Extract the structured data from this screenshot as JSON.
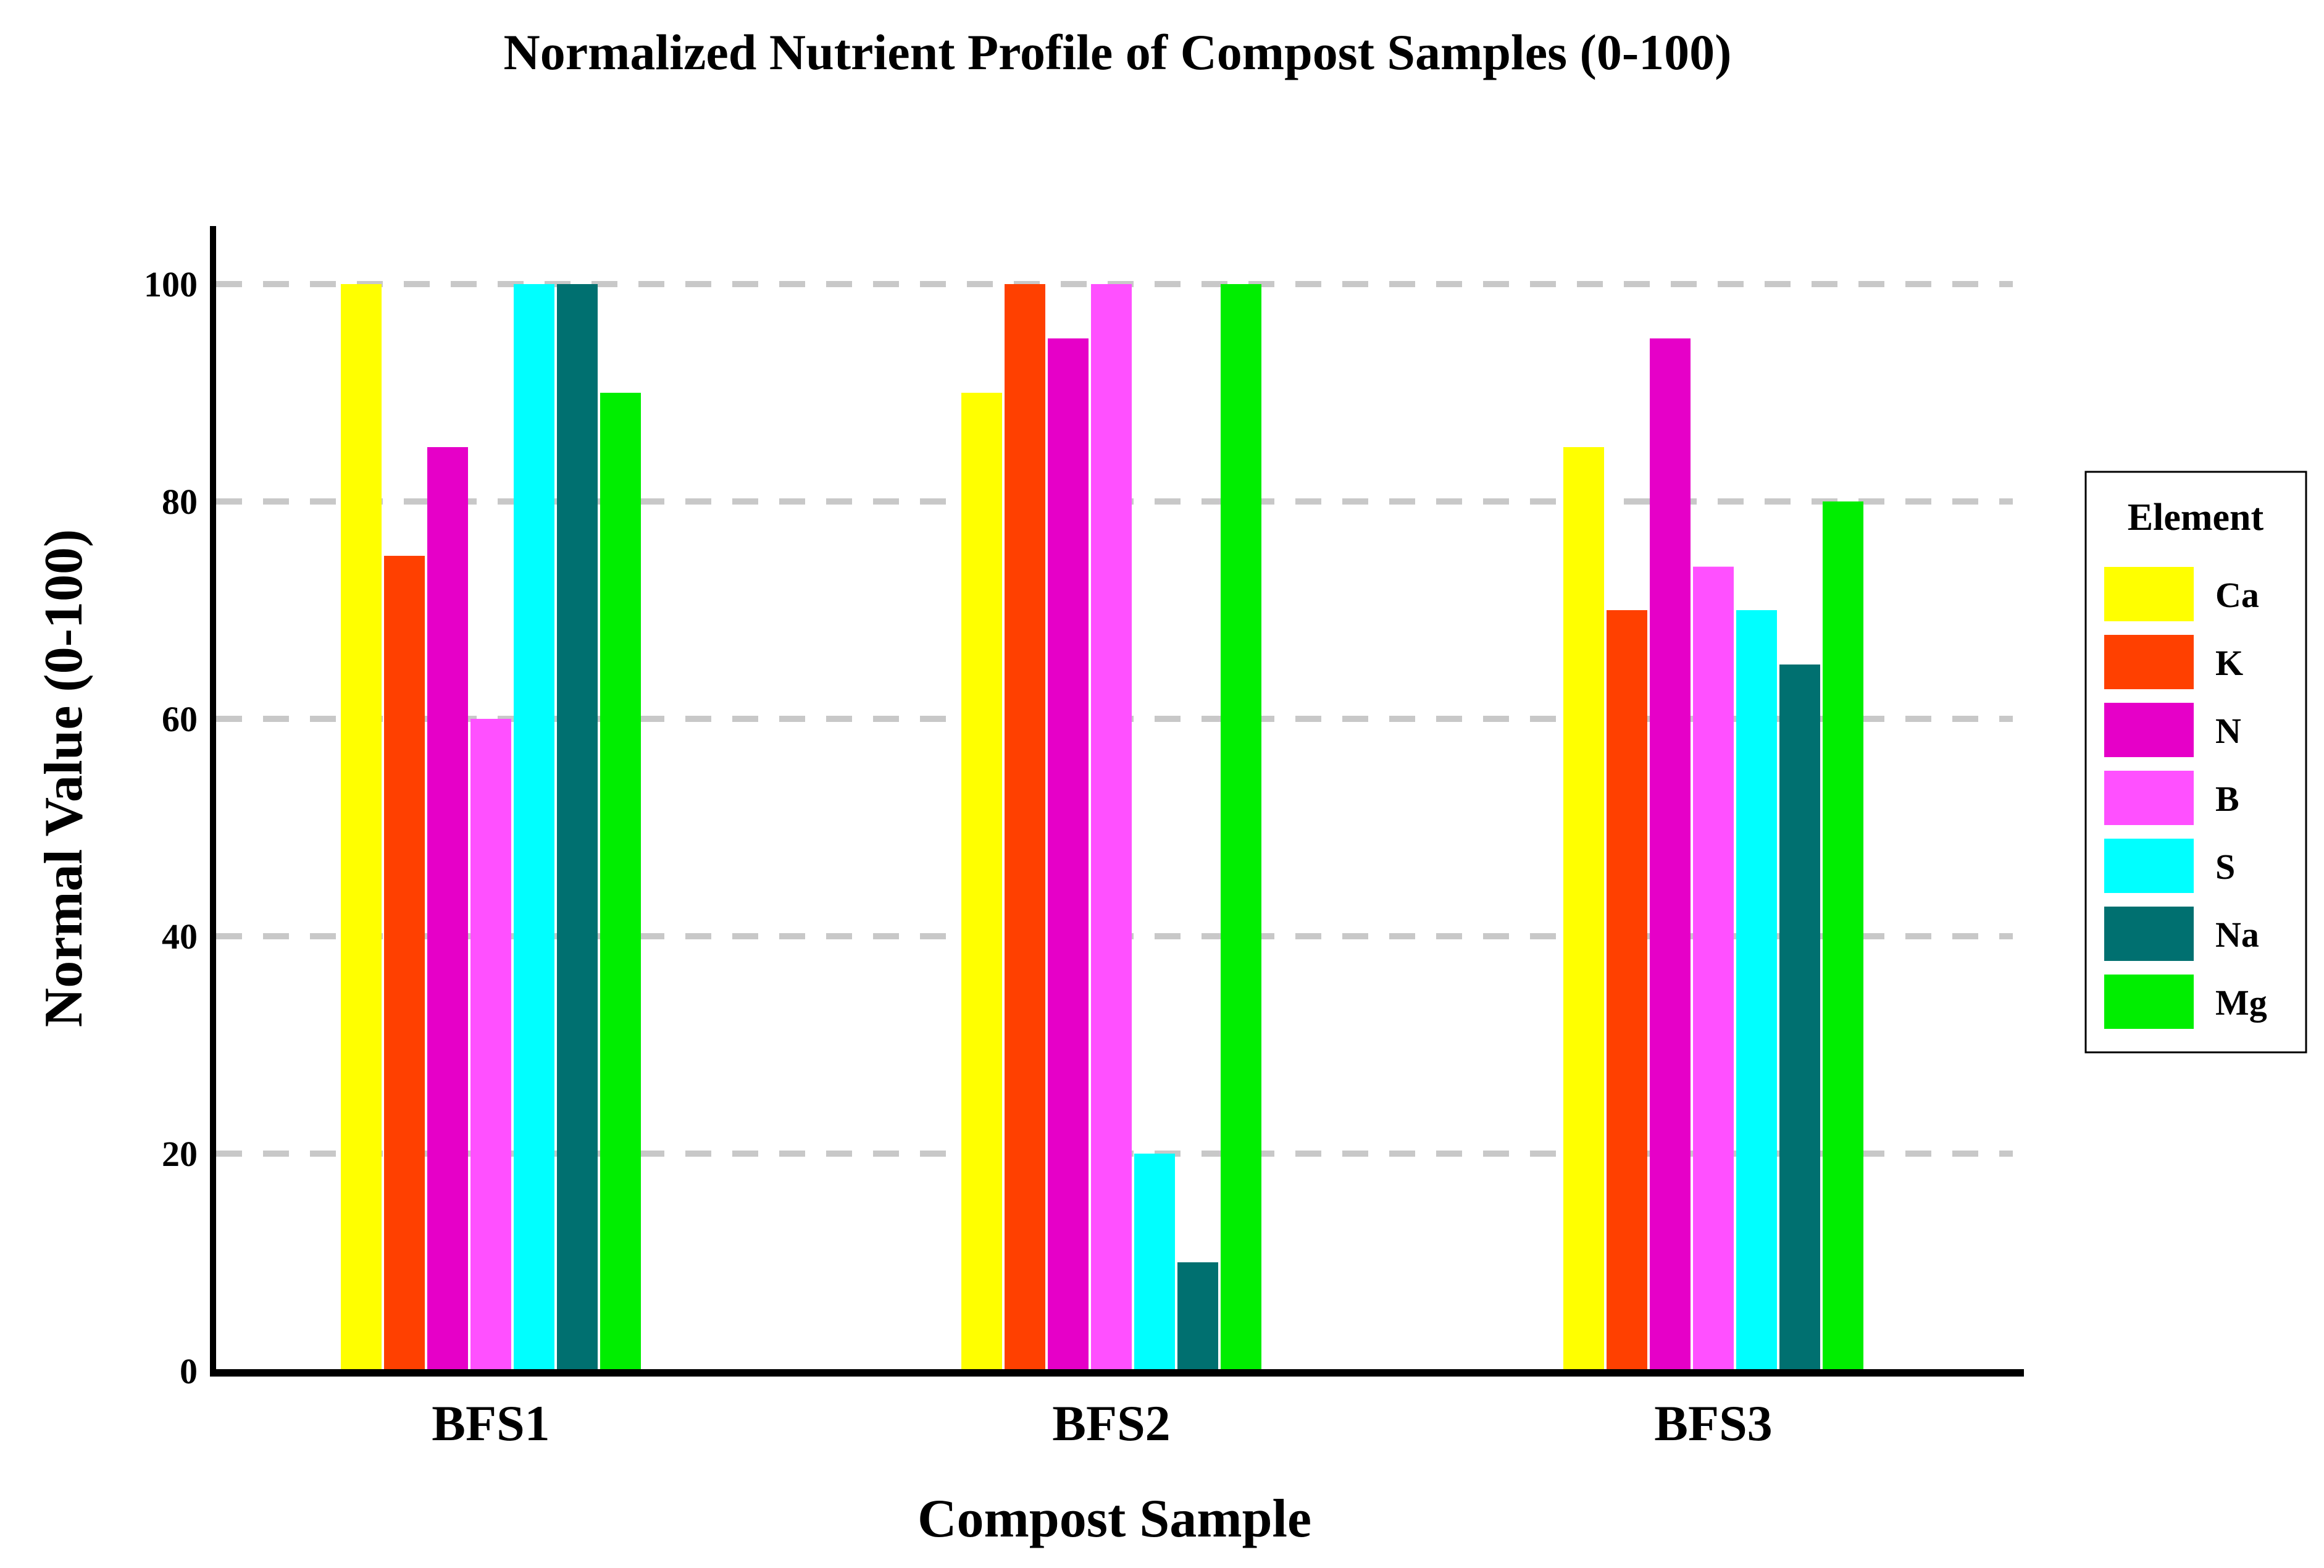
{
  "chart_data": {
    "type": "bar",
    "title": "Normalized Nutrient Profile of Compost Samples (0-100)",
    "xlabel": "Compost Sample",
    "ylabel": "Normal Value (0-100)",
    "ylim": [
      0,
      105
    ],
    "yticks": [
      0,
      20,
      40,
      60,
      80,
      100
    ],
    "grid": "horizontal dashed",
    "legend_title": "Element",
    "legend_position": "right",
    "categories": [
      "BFS1",
      "BFS2",
      "BFS3"
    ],
    "series": [
      {
        "name": "Ca",
        "color": "#ffff00",
        "values": [
          100,
          90,
          85
        ]
      },
      {
        "name": "K",
        "color": "#ff4000",
        "values": [
          75,
          100,
          70
        ]
      },
      {
        "name": "N",
        "color": "#e600c8",
        "values": [
          85,
          95,
          95
        ]
      },
      {
        "name": "B",
        "color": "#ff50ff",
        "values": [
          60,
          100,
          74
        ]
      },
      {
        "name": "S",
        "color": "#00ffff",
        "values": [
          100,
          20,
          70
        ]
      },
      {
        "name": "Na",
        "color": "#007070",
        "values": [
          100,
          10,
          65
        ]
      },
      {
        "name": "Mg",
        "color": "#00ee00",
        "values": [
          90,
          100,
          80
        ]
      }
    ]
  }
}
